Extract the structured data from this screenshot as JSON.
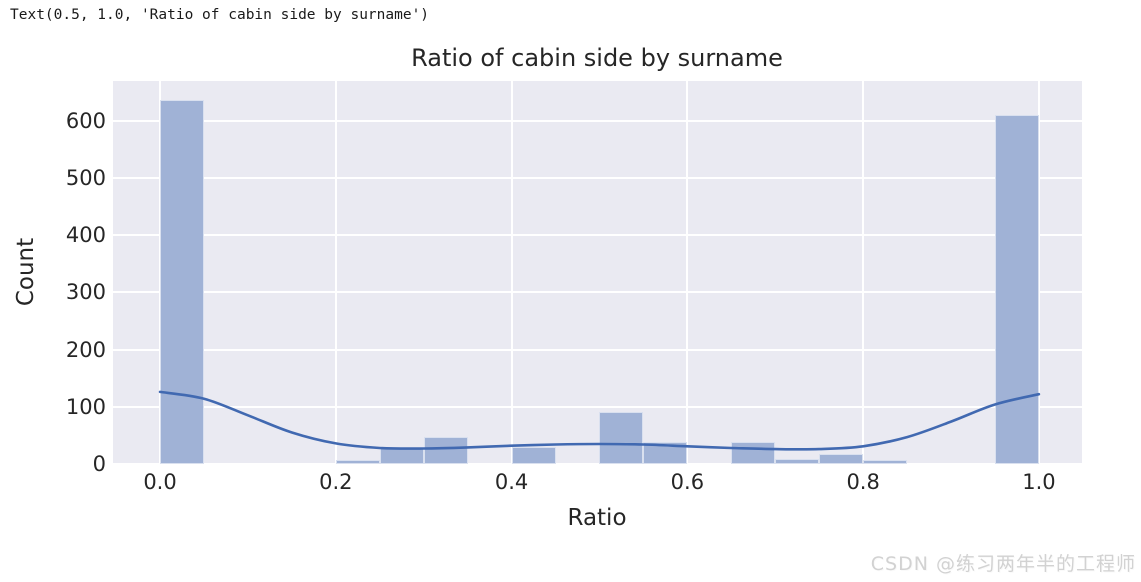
{
  "notebook_output": "Text(0.5, 1.0, 'Ratio of cabin side by surname')",
  "watermark": "CSDN @练习两年半的工程师",
  "chart_data": {
    "type": "bar",
    "subtype": "histogram-with-kde",
    "title": "Ratio of cabin side by surname",
    "xlabel": "Ratio",
    "ylabel": "Count",
    "x_tick_labels": [
      "0.0",
      "0.2",
      "0.4",
      "0.6",
      "0.8",
      "1.0"
    ],
    "x_tick_values": [
      0.0,
      0.2,
      0.4,
      0.6,
      0.8,
      1.0
    ],
    "y_tick_labels": [
      "0",
      "100",
      "200",
      "300",
      "400",
      "500",
      "600"
    ],
    "y_tick_values": [
      0,
      100,
      200,
      300,
      400,
      500,
      600
    ],
    "xlim": [
      -0.0535,
      1.049
    ],
    "ylim": [
      0,
      669
    ],
    "grid": true,
    "legend": false,
    "bin_width": 0.05,
    "bin_starts": [
      0.0,
      0.05,
      0.1,
      0.15,
      0.2,
      0.25,
      0.3,
      0.35,
      0.4,
      0.45,
      0.5,
      0.55,
      0.6,
      0.65,
      0.7,
      0.75,
      0.8,
      0.85,
      0.9,
      0.95
    ],
    "bin_counts": [
      636,
      0,
      0,
      0,
      7,
      28,
      47,
      0,
      30,
      0,
      90,
      39,
      0,
      38,
      8,
      18,
      7,
      0,
      0,
      610
    ],
    "kde": {
      "x": [
        0.0,
        0.05,
        0.1,
        0.15,
        0.2,
        0.25,
        0.3,
        0.35,
        0.4,
        0.45,
        0.5,
        0.55,
        0.6,
        0.65,
        0.7,
        0.75,
        0.8,
        0.85,
        0.9,
        0.95,
        1.0
      ],
      "y": [
        126,
        114,
        85,
        55,
        36,
        28,
        27,
        29,
        32,
        34,
        35,
        34,
        31,
        28,
        26,
        26,
        31,
        47,
        74,
        104,
        122
      ]
    },
    "colors": {
      "bar_fill": "#a0b2d6",
      "bar_edge": "rgba(255,255,255,0.6)",
      "kde_line": "#4169b1",
      "plot_bg": "#eaeaf2",
      "grid": "#ffffff",
      "text": "#262626"
    }
  }
}
